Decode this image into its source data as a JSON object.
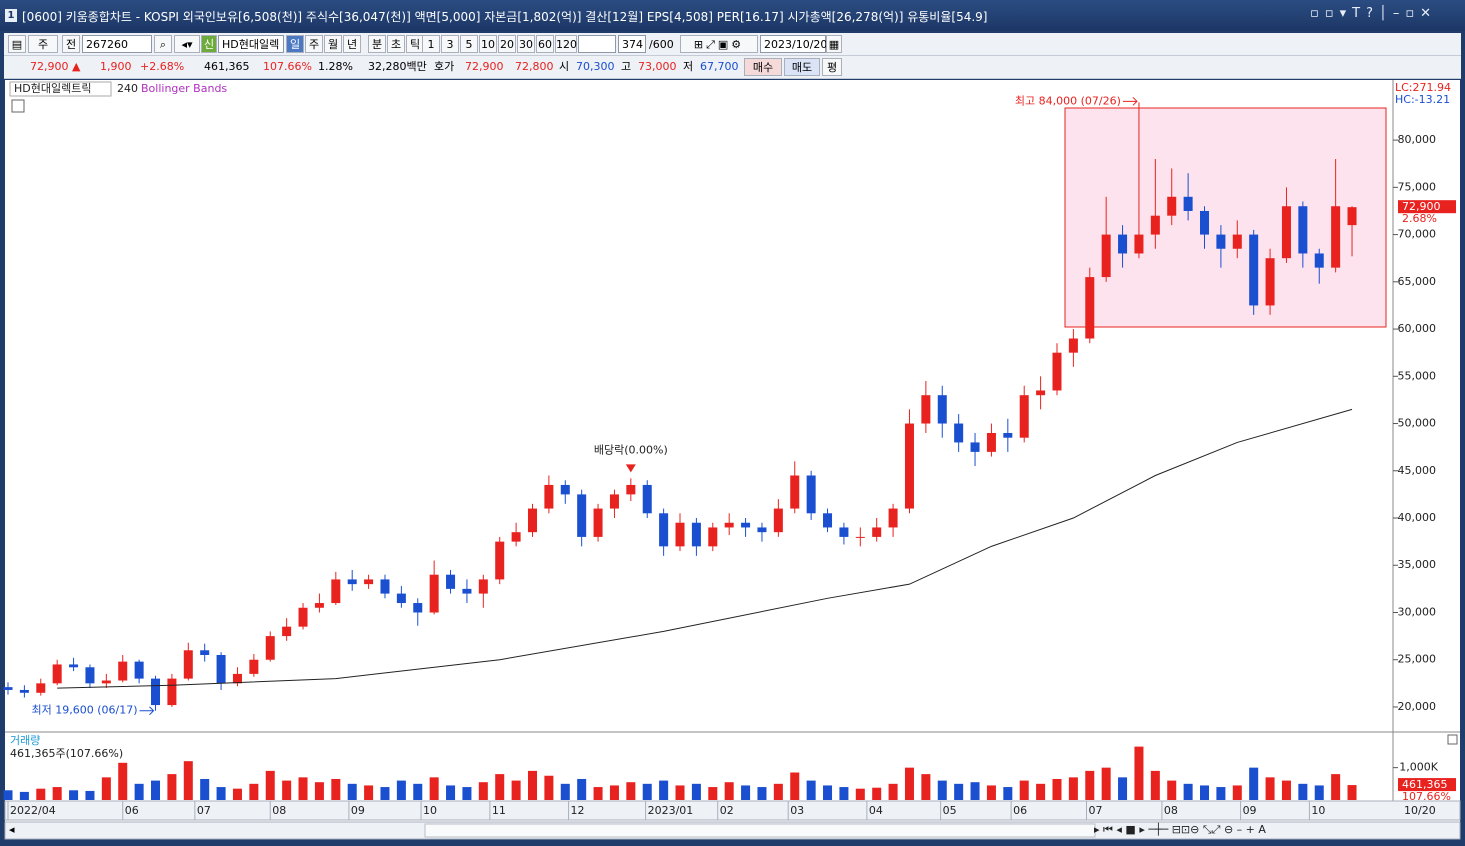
{
  "window_title": "[0600] 키움종합차트 - KOSPI 외국인보유[6,508(천)] 주식수[36,047(천)] 액면[5,000] 자본금[1,802(억)] 결산[12월] EPS[4,508] PER[16.17] 시가총액[26,278(억)] 유통비율[54.9]",
  "toolbar": {
    "market": "주",
    "prev": "전",
    "code": "267260",
    "badge": "신",
    "name": "HD현대일렉",
    "periods": [
      "일",
      "주",
      "월",
      "년",
      "분",
      "초",
      "틱"
    ],
    "intervals": [
      "1",
      "3",
      "5",
      "10",
      "20",
      "30",
      "60",
      "120"
    ],
    "count": "374",
    "count_max": "/600",
    "date": "2023/10/20"
  },
  "quote": {
    "price": "72,900 ▲",
    "change": "1,900",
    "rate": "+2.68%",
    "volume": "461,365",
    "volume_ratio": "107.66%",
    "turnover": "1.28%",
    "amount": "32,280백만",
    "bid_label": "호가",
    "ask": "72,900",
    "bid": "72,800",
    "open_label": "시",
    "open": "70,300",
    "high_label": "고",
    "high": "73,000",
    "low_label": "저",
    "low": "67,700",
    "buy": "매수",
    "sell": "매도",
    "avg": "평"
  },
  "chart_data": {
    "type": "candlestick",
    "title": "HD현대일렉트릭",
    "indicator": "Bollinger Bands",
    "up_color": "#e8231f",
    "down_color": "#1a4fd0",
    "xlim": [
      0,
      84.5
    ],
    "ylim": [
      17350,
      86150
    ],
    "xticks": [
      {
        "value": 0,
        "label": "2022/04"
      },
      {
        "value": 7,
        "label": "06"
      },
      {
        "value": 11.4,
        "label": "07"
      },
      {
        "value": 16,
        "label": "08"
      },
      {
        "value": 20.8,
        "label": "09"
      },
      {
        "value": 25.2,
        "label": "10"
      },
      {
        "value": 29.4,
        "label": "11"
      },
      {
        "value": 34.2,
        "label": "12"
      },
      {
        "value": 38.9,
        "label": "2023/01"
      },
      {
        "value": 43.3,
        "label": "02"
      },
      {
        "value": 47.6,
        "label": "03"
      },
      {
        "value": 52.4,
        "label": "04"
      },
      {
        "value": 56.9,
        "label": "05"
      },
      {
        "value": 61.2,
        "label": "06"
      },
      {
        "value": 65.8,
        "label": "07"
      },
      {
        "value": 70.4,
        "label": "08"
      },
      {
        "value": 75.2,
        "label": "09"
      },
      {
        "value": 79.4,
        "label": "10"
      }
    ],
    "yticks": [
      {
        "value": 20000,
        "label": "20,000"
      },
      {
        "value": 25000,
        "label": "25,000"
      },
      {
        "value": 30000,
        "label": "30,000"
      },
      {
        "value": 35000,
        "label": "35,000"
      },
      {
        "value": 40000,
        "label": "40,000"
      },
      {
        "value": 45000,
        "label": "45,000"
      },
      {
        "value": 50000,
        "label": "50,000"
      },
      {
        "value": 55000,
        "label": "55,000"
      },
      {
        "value": 60000,
        "label": "60,000"
      },
      {
        "value": 65000,
        "label": "65,000"
      },
      {
        "value": 70000,
        "label": "70,000"
      },
      {
        "value": 75000,
        "label": "75,000"
      },
      {
        "value": 80000,
        "label": "80,000"
      }
    ],
    "x": [
      0,
      1,
      2,
      3,
      4,
      5,
      6,
      7,
      8,
      9,
      10,
      11,
      12,
      13,
      14,
      15,
      16,
      17,
      18,
      19,
      20,
      21,
      22,
      23,
      24,
      25,
      26,
      27,
      28,
      29,
      30,
      31,
      32,
      33,
      34,
      35,
      36,
      37,
      38,
      39,
      40,
      41,
      42,
      43,
      44,
      45,
      46,
      47,
      48,
      49,
      50,
      51,
      52,
      53,
      54,
      55,
      56,
      57,
      58,
      59,
      60,
      61,
      62,
      63,
      64,
      65,
      66,
      67,
      68,
      69,
      70,
      71,
      72,
      73,
      74,
      75,
      76,
      77,
      78,
      79,
      80,
      81,
      82
    ],
    "open": [
      22100,
      21800,
      21500,
      22500,
      24500,
      24200,
      22500,
      22800,
      24800,
      23000,
      20200,
      23000,
      26000,
      25500,
      22500,
      23500,
      25000,
      27500,
      28500,
      30500,
      31000,
      33500,
      33000,
      33500,
      32000,
      31000,
      30000,
      34000,
      32500,
      32000,
      33500,
      37500,
      38500,
      41000,
      43500,
      42500,
      38000,
      41000,
      42500,
      43500,
      40500,
      37000,
      39500,
      37000,
      39000,
      39500,
      39000,
      38500,
      41000,
      44500,
      40500,
      39000,
      38000,
      38000,
      39000,
      41000,
      50000,
      53000,
      50000,
      48000,
      47000,
      49000,
      48500,
      53000,
      53500,
      57500,
      59000,
      65500,
      70000,
      68000,
      70000,
      72000,
      74000,
      72500,
      70000,
      68500,
      70000,
      62500,
      67500,
      73000,
      68000,
      66500,
      71000
    ],
    "high": [
      22600,
      22300,
      23000,
      25000,
      25200,
      24500,
      23500,
      25500,
      25000,
      23300,
      23500,
      26800,
      26700,
      25800,
      24200,
      25600,
      28000,
      29400,
      31000,
      32000,
      34300,
      34500,
      34000,
      34000,
      32800,
      31500,
      35500,
      34500,
      33500,
      34000,
      38000,
      39500,
      41500,
      44500,
      44000,
      43000,
      41500,
      43000,
      44200,
      44000,
      41000,
      40500,
      40000,
      39500,
      40500,
      40000,
      39500,
      42000,
      46000,
      45000,
      41000,
      39500,
      39000,
      40000,
      41500,
      51500,
      54500,
      54000,
      51000,
      49000,
      50000,
      50500,
      54000,
      55000,
      58500,
      60000,
      66500,
      74000,
      71000,
      84000,
      78000,
      77000,
      76500,
      73000,
      71000,
      71500,
      70500,
      68500,
      75000,
      73500,
      68500,
      78000,
      73000
    ],
    "low": [
      21300,
      21000,
      21200,
      22300,
      23800,
      22000,
      22000,
      22600,
      22500,
      19600,
      20000,
      22800,
      24800,
      21800,
      22200,
      23200,
      24800,
      27000,
      28200,
      30000,
      30800,
      32300,
      32500,
      31500,
      30500,
      28600,
      29800,
      32000,
      31000,
      30500,
      33000,
      37000,
      38000,
      40500,
      41500,
      37000,
      37500,
      40000,
      41800,
      40000,
      36000,
      36500,
      36000,
      36500,
      38200,
      38000,
      37500,
      38000,
      40500,
      39800,
      38500,
      37200,
      37000,
      37500,
      38000,
      40500,
      49000,
      48500,
      47000,
      45500,
      46500,
      47000,
      48000,
      51500,
      53000,
      56000,
      58500,
      65000,
      66500,
      67500,
      68500,
      71000,
      71500,
      68500,
      66500,
      67500,
      61500,
      61500,
      67000,
      66500,
      64800,
      66000,
      67700
    ],
    "close": [
      21800,
      21500,
      22500,
      24500,
      24200,
      22500,
      22800,
      24800,
      23000,
      20200,
      23000,
      26000,
      25500,
      22500,
      23500,
      25000,
      27500,
      28500,
      30500,
      31000,
      33500,
      33000,
      33500,
      32000,
      31000,
      30000,
      34000,
      32500,
      32000,
      33500,
      37500,
      38500,
      41000,
      43500,
      42500,
      38000,
      41000,
      42500,
      43500,
      40500,
      37000,
      39500,
      37000,
      39000,
      39500,
      39000,
      38500,
      41000,
      44500,
      40500,
      39000,
      38000,
      38000,
      39000,
      41000,
      50000,
      53000,
      50000,
      48000,
      47000,
      49000,
      48500,
      53000,
      53500,
      57500,
      59000,
      65500,
      70000,
      68000,
      70000,
      72000,
      74000,
      72500,
      70000,
      68500,
      70000,
      62500,
      67500,
      73000,
      68000,
      66500,
      73000,
      72900
    ],
    "ma": {
      "name": "240",
      "color": "#222222",
      "x": [
        3,
        10,
        20,
        30,
        40,
        50,
        55,
        60,
        65,
        70,
        75,
        82
      ],
      "values": [
        22000,
        22300,
        23000,
        25000,
        28000,
        31500,
        33000,
        37000,
        40000,
        44500,
        48000,
        51500
      ]
    },
    "volume": {
      "title": "거래량",
      "summary": "461,365주(107.66%)",
      "ylim": [
        0,
        1700000
      ],
      "yticks": [
        {
          "value": 1000000,
          "label": "1,000K"
        }
      ],
      "tag": "461,365",
      "tag_ratio": "107.66%",
      "values": [
        300000,
        250000,
        350000,
        400000,
        300000,
        280000,
        700000,
        1150000,
        500000,
        600000,
        800000,
        1200000,
        650000,
        400000,
        350000,
        500000,
        900000,
        600000,
        700000,
        550000,
        650000,
        500000,
        450000,
        400000,
        600000,
        500000,
        700000,
        450000,
        400000,
        550000,
        800000,
        600000,
        900000,
        750000,
        500000,
        650000,
        400000,
        450000,
        550000,
        500000,
        600000,
        450000,
        500000,
        400000,
        550000,
        450000,
        400000,
        500000,
        850000,
        600000,
        450000,
        400000,
        350000,
        380000,
        500000,
        1000000,
        800000,
        600000,
        500000,
        550000,
        450000,
        400000,
        600000,
        500000,
        650000,
        700000,
        900000,
        1000000,
        700000,
        1650000,
        900000,
        600000,
        500000,
        450000,
        400000,
        450000,
        1000000,
        700000,
        600000,
        500000,
        450000,
        800000,
        461365
      ]
    },
    "annotations": [
      "최고 84,000 (07/26)",
      "최저 19,600 (06/17)",
      "배당락(0.00%)"
    ],
    "lc": "LC:271.94",
    "hc": "HC:-13.21",
    "price_tag": "72,900",
    "rate_tag": "2.68%",
    "cursor_date": "10/20"
  }
}
